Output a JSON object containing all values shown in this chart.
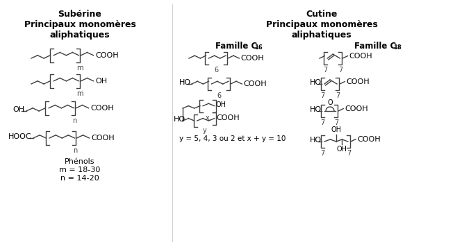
{
  "title_left": "Subérine\nPrincipaux monomères\naliphatiques",
  "title_right": "Cutine\nPrincipaux monomères\naliphatiques",
  "phenols": "Phénols",
  "m_range": "m = 18-30",
  "n_range": "n = 14-20",
  "y_formula": "y = 5, 4, 3 ou 2 et x + y = 10",
  "bg_color": "#ffffff",
  "line_color": "#404040",
  "text_color": "#000000",
  "fontsize_title": 9,
  "fontsize_label": 8,
  "fontsize_small": 7
}
